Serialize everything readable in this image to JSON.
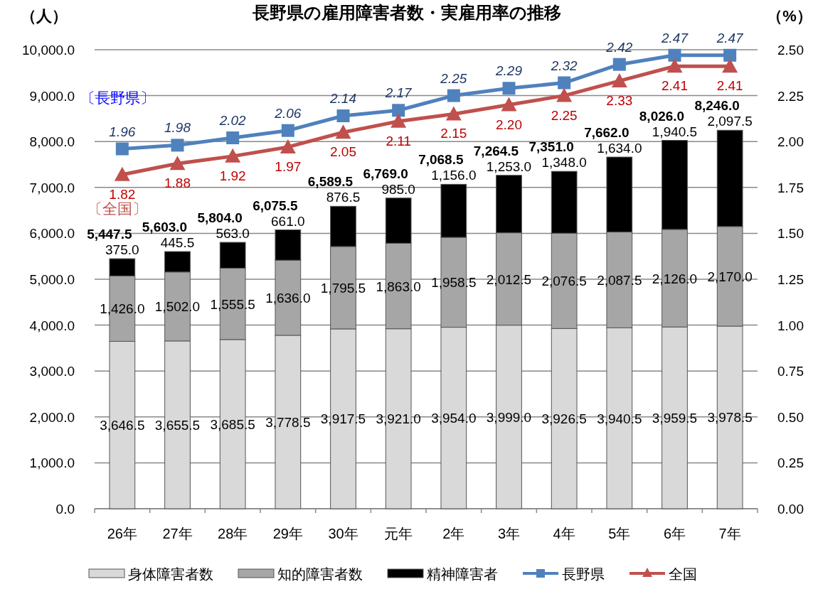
{
  "chart_data": {
    "type": "bar",
    "title": "長野県の雇用障害者数・実雇用率の推移",
    "ylabel": "（人）",
    "y2label": "（%）",
    "categories": [
      "26年",
      "27年",
      "28年",
      "29年",
      "30年",
      "元年",
      "2年",
      "3年",
      "4年",
      "5年",
      "6年",
      "7年"
    ],
    "stacked": true,
    "series": [
      {
        "name": "身体障害者数",
        "color": "#d9d9d9",
        "values": [
          3646.5,
          3655.5,
          3685.5,
          3778.5,
          3917.5,
          3921.0,
          3954.0,
          3999.0,
          3926.5,
          3940.5,
          3959.5,
          3978.5
        ],
        "value_labels": [
          "3,646.5",
          "3,655.5",
          "3,685.5",
          "3,778.5",
          "3,917.5",
          "3,921.0",
          "3,954.0",
          "3,999.0",
          "3,926.5",
          "3,940.5",
          "3,959.5",
          "3,978.5"
        ]
      },
      {
        "name": "知的障害者数",
        "color": "#a6a6a6",
        "values": [
          1426.0,
          1502.0,
          1555.5,
          1636.0,
          1795.5,
          1863.0,
          1958.5,
          2012.5,
          2076.5,
          2087.5,
          2126.0,
          2170.0
        ],
        "value_labels": [
          "1,426.0",
          "1,502.0",
          "1,555.5",
          "1,636.0",
          "1,795.5",
          "1,863.0",
          "1,958.5",
          "2,012.5",
          "2,076.5",
          "2,087.5",
          "2,126.0",
          "2,170.0"
        ]
      },
      {
        "name": "精神障害者",
        "color": "#000000",
        "values": [
          375.0,
          445.5,
          563.0,
          661.0,
          876.5,
          985.0,
          1156.0,
          1253.0,
          1348.0,
          1634.0,
          1940.5,
          2097.5
        ],
        "value_labels": [
          "375.0",
          "445.5",
          "563.0",
          "661.0",
          "876.5",
          "985.0",
          "1,156.0",
          "1,253.0",
          "1,348.0",
          "1,634.0",
          "1,940.5",
          "2,097.5"
        ]
      },
      {
        "name": "長野県",
        "type": "line",
        "axis": "y2",
        "marker": "square",
        "color": "#4f81bd",
        "values": [
          1.96,
          1.98,
          2.02,
          2.06,
          2.14,
          2.17,
          2.25,
          2.29,
          2.32,
          2.42,
          2.47,
          2.47
        ],
        "value_labels": [
          "1.96",
          "1.98",
          "2.02",
          "2.06",
          "2.14",
          "2.17",
          "2.25",
          "2.29",
          "2.32",
          "2.42",
          "2.47",
          "2.47"
        ]
      },
      {
        "name": "全国",
        "type": "line",
        "axis": "y2",
        "marker": "triangle",
        "color": "#c0504d",
        "values": [
          1.82,
          1.88,
          1.92,
          1.97,
          2.05,
          2.11,
          2.15,
          2.2,
          2.25,
          2.33,
          2.41,
          2.41
        ],
        "value_labels": [
          "1.82",
          "1.88",
          "1.92",
          "1.97",
          "2.05",
          "2.11",
          "2.15",
          "2.20",
          "2.25",
          "2.33",
          "2.41",
          "2.41"
        ]
      }
    ],
    "totals": [
      "5,447.5",
      "5,603.0",
      "5,804.0",
      "6,075.5",
      "6,589.5",
      "6,769.0",
      "7,068.5",
      "7,264.5",
      "7,351.0",
      "7,662.0",
      "8,026.0",
      "8,246.0"
    ],
    "ylim": [
      0,
      10000
    ],
    "yticks": [
      {
        "value": 0,
        "label": "0.0"
      },
      {
        "value": 1000,
        "label": "1,000.0"
      },
      {
        "value": 2000,
        "label": "2,000.0"
      },
      {
        "value": 3000,
        "label": "3,000.0"
      },
      {
        "value": 4000,
        "label": "4,000.0"
      },
      {
        "value": 5000,
        "label": "5,000.0"
      },
      {
        "value": 6000,
        "label": "6,000.0"
      },
      {
        "value": 7000,
        "label": "7,000.0"
      },
      {
        "value": 8000,
        "label": "8,000.0"
      },
      {
        "value": 9000,
        "label": "9,000.0"
      },
      {
        "value": 10000,
        "label": "10,000.0"
      }
    ],
    "y2lim": [
      0,
      2.5
    ],
    "y2ticks": [
      {
        "value": 0,
        "label": "0.00"
      },
      {
        "value": 0.25,
        "label": "0.25"
      },
      {
        "value": 0.5,
        "label": "0.50"
      },
      {
        "value": 0.75,
        "label": "0.75"
      },
      {
        "value": 1,
        "label": "1.00"
      },
      {
        "value": 1.25,
        "label": "1.25"
      },
      {
        "value": 1.5,
        "label": "1.50"
      },
      {
        "value": 1.75,
        "label": "1.75"
      },
      {
        "value": 2,
        "label": "2.00"
      },
      {
        "value": 2.25,
        "label": "2.25"
      },
      {
        "value": 2.5,
        "label": "2.50"
      }
    ],
    "annotations": [
      "〔長野県〕",
      "〔全国〕"
    ],
    "grid": "y",
    "legend": "bottom"
  }
}
